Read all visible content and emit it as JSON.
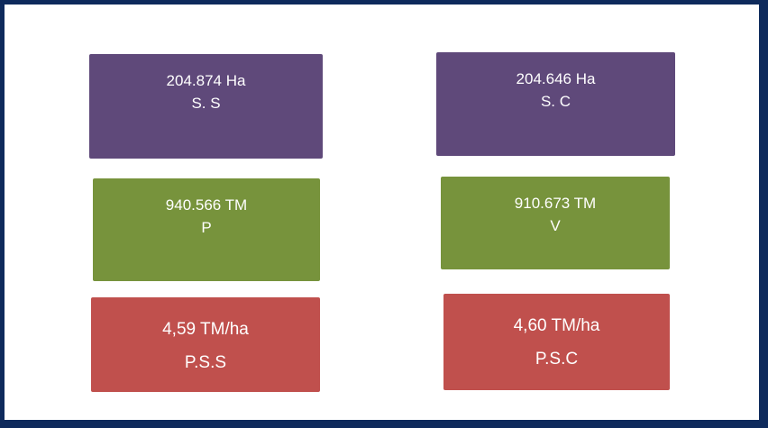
{
  "boxes": [
    {
      "value": "204.874 Ha",
      "label": "S. S"
    },
    {
      "value": "204.646 Ha",
      "label": "S. C"
    },
    {
      "value": "940.566 TM",
      "label": "P"
    },
    {
      "value": "910.673 TM",
      "label": "V"
    },
    {
      "value": "4,59 TM/ha",
      "label": "P.S.S"
    },
    {
      "value": "4,60 TM/ha",
      "label": "P.S.C"
    }
  ]
}
